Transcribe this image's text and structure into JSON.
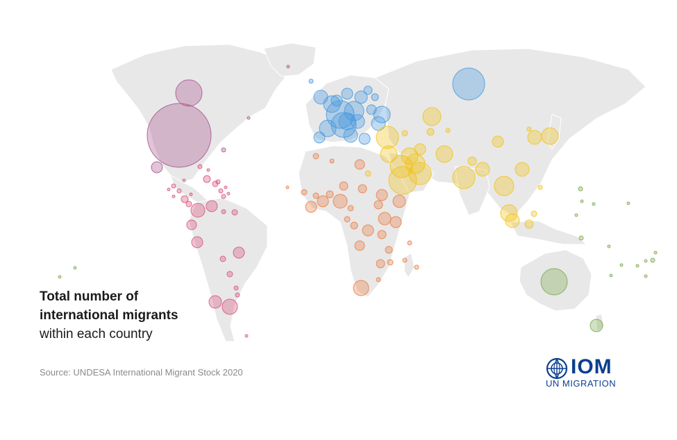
{
  "title": {
    "line1": "Total number of",
    "line2": "international migrants",
    "line3": "within each country"
  },
  "source": "Source: UNDESA International Migrant Stock 2020",
  "logo": {
    "text": "IOM",
    "subtext": "UN MIGRATION",
    "icon": "un-emblem-icon"
  },
  "colors": {
    "land": "#e6e6e6",
    "north_america": "#a9568f",
    "latin_america": "#d8547b",
    "europe": "#4a9ae0",
    "africa": "#e97f48",
    "asia": "#f2c21b",
    "oceania": "#7aa94e",
    "logo": "#0b3f8f"
  }
}
